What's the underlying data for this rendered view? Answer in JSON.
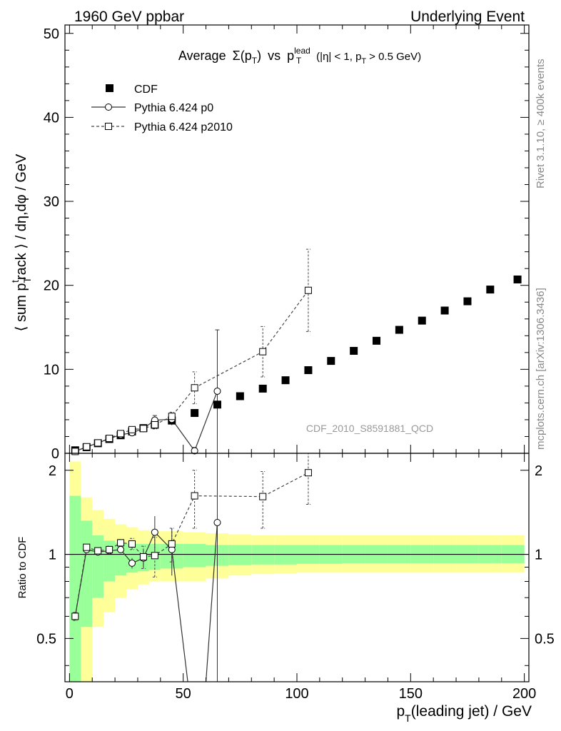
{
  "header": {
    "left_label": "1960 GeV ppbar",
    "right_label": "Underlying Event"
  },
  "side_labels": {
    "rivet": "Rivet 3.1.10, ≥ 400k events",
    "mcplots": "mcplots.cern.ch [arXiv:1306.3436]"
  },
  "watermark": "CDF_2010_S8591881_QCD",
  "colors": {
    "band_inner": "#99ff99",
    "band_outer": "#ffff99",
    "data": "#000000"
  },
  "chart_data": [
    {
      "type": "scatter",
      "title": "Average Σ(pT) vs pT lead (|η| < 1, pT > 0.5 GeV)",
      "title_parts": {
        "average": "Average",
        "sigma": "Σ(p",
        "sub_T": "T",
        "close": ")",
        "vs": "vs",
        "p": "p",
        "sup_lead": "lead",
        "cuts": "(|η| < 1, p",
        "cuts_sub": "T",
        "cuts_end": "> 0.5 GeV)"
      },
      "ylabel": "⟨ sum pTtrack ⟩ / dη,dφ / GeV",
      "ylabel_parts": {
        "pre": "⟨ sum p",
        "sub": "T",
        "sup": "t",
        "post": "rack ⟩ / dη,dφ / GeV"
      },
      "xlim": [
        -2,
        202
      ],
      "ylim": [
        0,
        51
      ],
      "yticks": [
        0,
        10,
        20,
        30,
        40,
        50
      ],
      "legend_position": "top-left",
      "legend": [
        "CDF",
        "Pythia 6.424 p0",
        "Pythia 6.424 p2010"
      ],
      "series": [
        {
          "name": "CDF",
          "marker": "filled-square",
          "x": [
            2.5,
            7.5,
            12.5,
            17.5,
            22.5,
            27.5,
            32.5,
            37.5,
            45,
            55,
            65,
            75,
            85,
            95,
            105,
            115,
            125,
            135,
            145,
            155,
            165,
            175,
            185,
            197
          ],
          "y": [
            0.36,
            0.73,
            1.2,
            1.7,
            2.15,
            2.6,
            3.0,
            3.4,
            3.9,
            4.8,
            5.8,
            6.8,
            7.7,
            8.7,
            9.9,
            11.0,
            12.2,
            13.4,
            14.7,
            15.8,
            17.0,
            18.1,
            19.5,
            20.7
          ]
        },
        {
          "name": "Pythia 6.424 p0",
          "marker": "open-circle",
          "x": [
            2.5,
            7.5,
            12.5,
            17.5,
            22.5,
            27.5,
            32.5,
            37.5,
            45,
            55,
            65
          ],
          "y": [
            0.22,
            0.76,
            1.23,
            1.75,
            2.2,
            2.45,
            2.95,
            3.95,
            4.05,
            0.3,
            7.4
          ],
          "yerr": [
            0.05,
            0.05,
            0.05,
            0.08,
            0.12,
            0.2,
            0.3,
            0.55,
            0.7,
            0.4,
            7.3
          ]
        },
        {
          "name": "Pythia 6.424 p2010",
          "marker": "open-square",
          "x": [
            2.5,
            7.5,
            12.5,
            17.5,
            22.5,
            27.5,
            32.5,
            37.5,
            45,
            55,
            85,
            105
          ],
          "y": [
            0.22,
            0.78,
            1.24,
            1.78,
            2.35,
            2.82,
            2.95,
            3.4,
            4.4,
            7.8,
            12.1,
            19.4
          ],
          "yerr": [
            0.05,
            0.05,
            0.05,
            0.08,
            0.12,
            0.2,
            0.3,
            0.5,
            0.5,
            1.9,
            3.0,
            4.9
          ]
        }
      ]
    },
    {
      "type": "scatter",
      "ylabel": "Ratio to CDF",
      "xlabel": "pT(leading jet) / GeV",
      "xlabel_parts": {
        "p": "p",
        "sub": "T",
        "rest": "(leading jet) / GeV"
      },
      "xlim": [
        -2,
        202
      ],
      "ylim": [
        0.35,
        2.3
      ],
      "yscale": "log",
      "yticks": [
        0.5,
        1,
        2
      ],
      "xticks": [
        0,
        50,
        100,
        150,
        200
      ],
      "bands": {
        "edges": [
          0,
          5,
          10,
          15,
          20,
          25,
          30,
          35,
          40,
          50,
          60,
          70,
          80,
          90,
          100,
          110,
          120,
          130,
          140,
          150,
          160,
          170,
          180,
          190,
          200
        ],
        "inner_low": [
          0.3,
          0.55,
          0.7,
          0.8,
          0.84,
          0.86,
          0.87,
          0.88,
          0.89,
          0.9,
          0.91,
          0.915,
          0.92,
          0.92,
          0.925,
          0.925,
          0.93,
          0.93,
          0.93,
          0.93,
          0.93,
          0.93,
          0.93,
          0.93
        ],
        "inner_high": [
          1.62,
          1.32,
          1.17,
          1.12,
          1.1,
          1.09,
          1.09,
          1.09,
          1.09,
          1.09,
          1.08,
          1.08,
          1.08,
          1.08,
          1.08,
          1.08,
          1.08,
          1.08,
          1.08,
          1.08,
          1.08,
          1.08,
          1.08,
          1.08
        ],
        "outer_low": [
          0.3,
          0.3,
          0.55,
          0.62,
          0.7,
          0.75,
          0.78,
          0.8,
          0.8,
          0.8,
          0.82,
          0.84,
          0.85,
          0.855,
          0.86,
          0.86,
          0.86,
          0.86,
          0.86,
          0.86,
          0.86,
          0.86,
          0.86,
          0.86
        ],
        "outer_high": [
          2.15,
          1.6,
          1.44,
          1.34,
          1.28,
          1.25,
          1.22,
          1.21,
          1.21,
          1.2,
          1.19,
          1.18,
          1.17,
          1.17,
          1.17,
          1.17,
          1.17,
          1.17,
          1.17,
          1.17,
          1.17,
          1.17,
          1.17,
          1.17
        ]
      },
      "series": [
        {
          "name": "Pythia 6.424 p0",
          "marker": "open-circle",
          "x": [
            2.5,
            7.5,
            12.5,
            17.5,
            22.5,
            27.5,
            32.5,
            37.5,
            45,
            65
          ],
          "y": [
            0.6,
            1.04,
            1.02,
            1.03,
            1.04,
            0.93,
            0.97,
            1.2,
            1.04,
            1.3
          ],
          "yerr": [
            0.02,
            0.02,
            0.02,
            0.03,
            0.03,
            0.04,
            0.07,
            0.17,
            0.2,
            1.2
          ],
          "offscale_to": [
            52,
            60
          ]
        },
        {
          "name": "Pythia 6.424 p2010",
          "marker": "open-square",
          "x": [
            2.5,
            7.5,
            12.5,
            17.5,
            22.5,
            27.5,
            32.5,
            37.5,
            45,
            55,
            85,
            105
          ],
          "y": [
            0.6,
            1.06,
            1.03,
            1.04,
            1.1,
            1.09,
            0.98,
            0.99,
            1.09,
            1.62,
            1.61,
            1.96
          ],
          "yerr": [
            0.02,
            0.02,
            0.02,
            0.03,
            0.03,
            0.05,
            0.09,
            0.16,
            0.15,
            0.38,
            0.37,
            0.45
          ]
        }
      ]
    }
  ]
}
